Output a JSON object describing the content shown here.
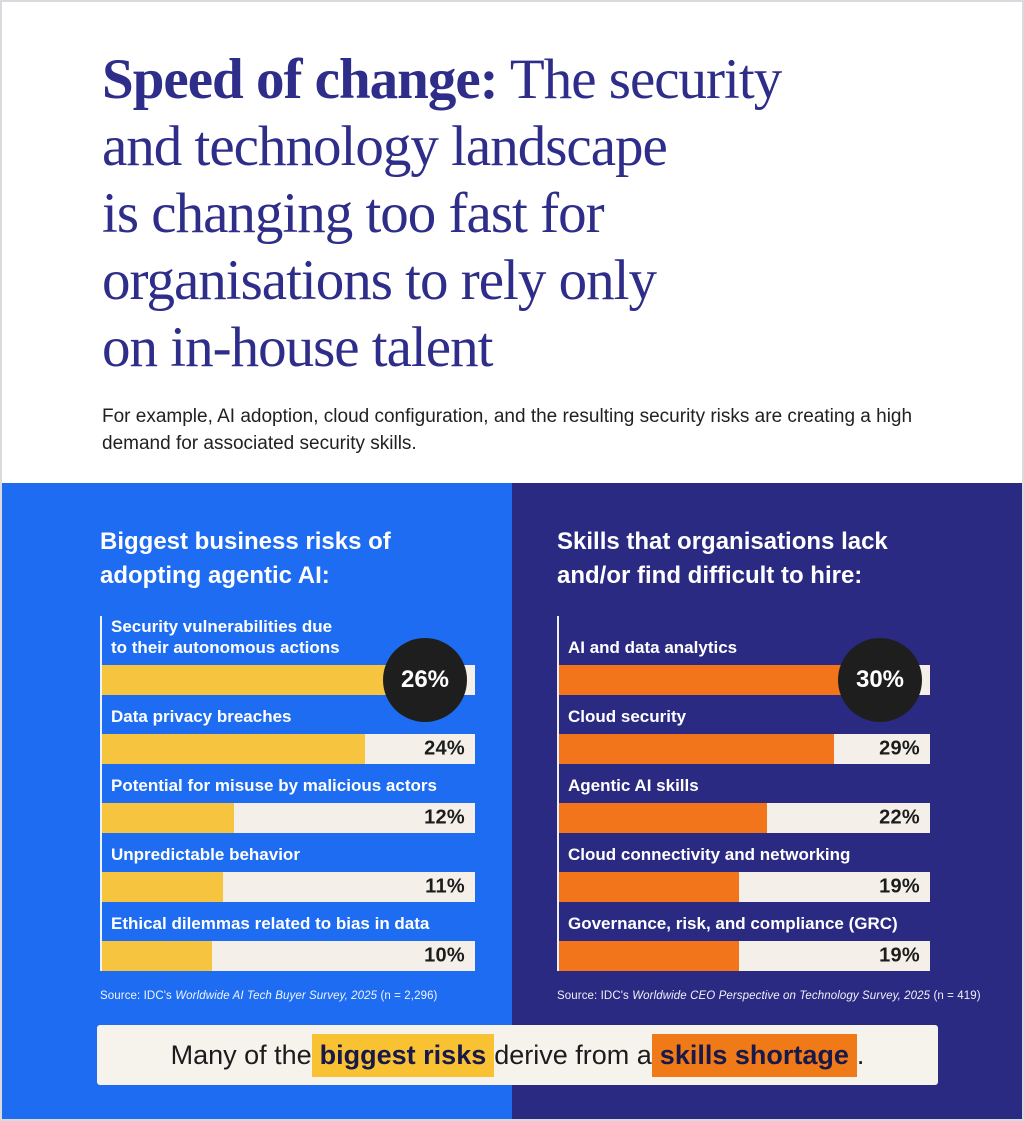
{
  "header": {
    "title_bold": "Speed of change:",
    "title_rest": " The security",
    "title_lines": [
      "and technology landscape",
      "is changing too fast for",
      "organisations to rely only",
      "on in-house talent"
    ],
    "subtitle": "For example, AI adoption, cloud configuration, and the resulting security risks are creating a high demand for associated security skills."
  },
  "chart_data": [
    {
      "type": "bar",
      "orientation": "horizontal",
      "title": "Biggest business risks of\nadopting agentic AI:",
      "categories": [
        "Security vulnerabilities due\nto their autonomous actions",
        "Data privacy breaches",
        "Potential for misuse by malicious actors",
        "Unpredictable behavior",
        "Ethical dilemmas related to bias in data"
      ],
      "values": [
        26,
        24,
        12,
        11,
        10
      ],
      "unit": "%",
      "badge_index": 0,
      "bar_color": "#f7c440",
      "track_color": "#f4f0e9",
      "xlim": [
        0,
        34
      ],
      "grid": false,
      "legend": "none",
      "source_prefix": "Source: IDC's ",
      "source_italic": "Worldwide AI Tech Buyer Survey, 2025",
      "source_suffix": " (n = 2,296)"
    },
    {
      "type": "bar",
      "orientation": "horizontal",
      "title": "Skills that organisations lack\nand/or find difficult to hire:",
      "categories": [
        "AI and data analytics",
        "Cloud security",
        "Agentic AI skills",
        "Cloud connectivity and networking",
        "Governance, risk, and compliance (GRC)"
      ],
      "values": [
        30,
        29,
        22,
        19,
        19
      ],
      "unit": "%",
      "badge_index": 0,
      "bar_color": "#f2741b",
      "track_color": "#f4f0e9",
      "xlim": [
        0,
        39
      ],
      "grid": false,
      "legend": "none",
      "source_prefix": "Source: IDC's ",
      "source_italic": "Worldwide CEO Perspective on Technology Survey, 2025",
      "source_suffix": " (n = 419)"
    }
  ],
  "banner": {
    "part1": "Many of the ",
    "highlight1": "biggest risks",
    "part2": " derive from a ",
    "highlight2": "skills shortage",
    "part3": "."
  },
  "colors": {
    "headline": "#2e2d89",
    "panel_left": "#1e6cf1",
    "panel_right": "#2b2a83",
    "bar_yellow": "#f7c440",
    "bar_orange": "#f2741b",
    "bar_track": "#f4f0e9",
    "badge_circle": "#1e1e1e",
    "banner_bg": "#f6f2ec",
    "highlight_yellow": "#f9c232",
    "highlight_orange": "#ef7a17"
  }
}
